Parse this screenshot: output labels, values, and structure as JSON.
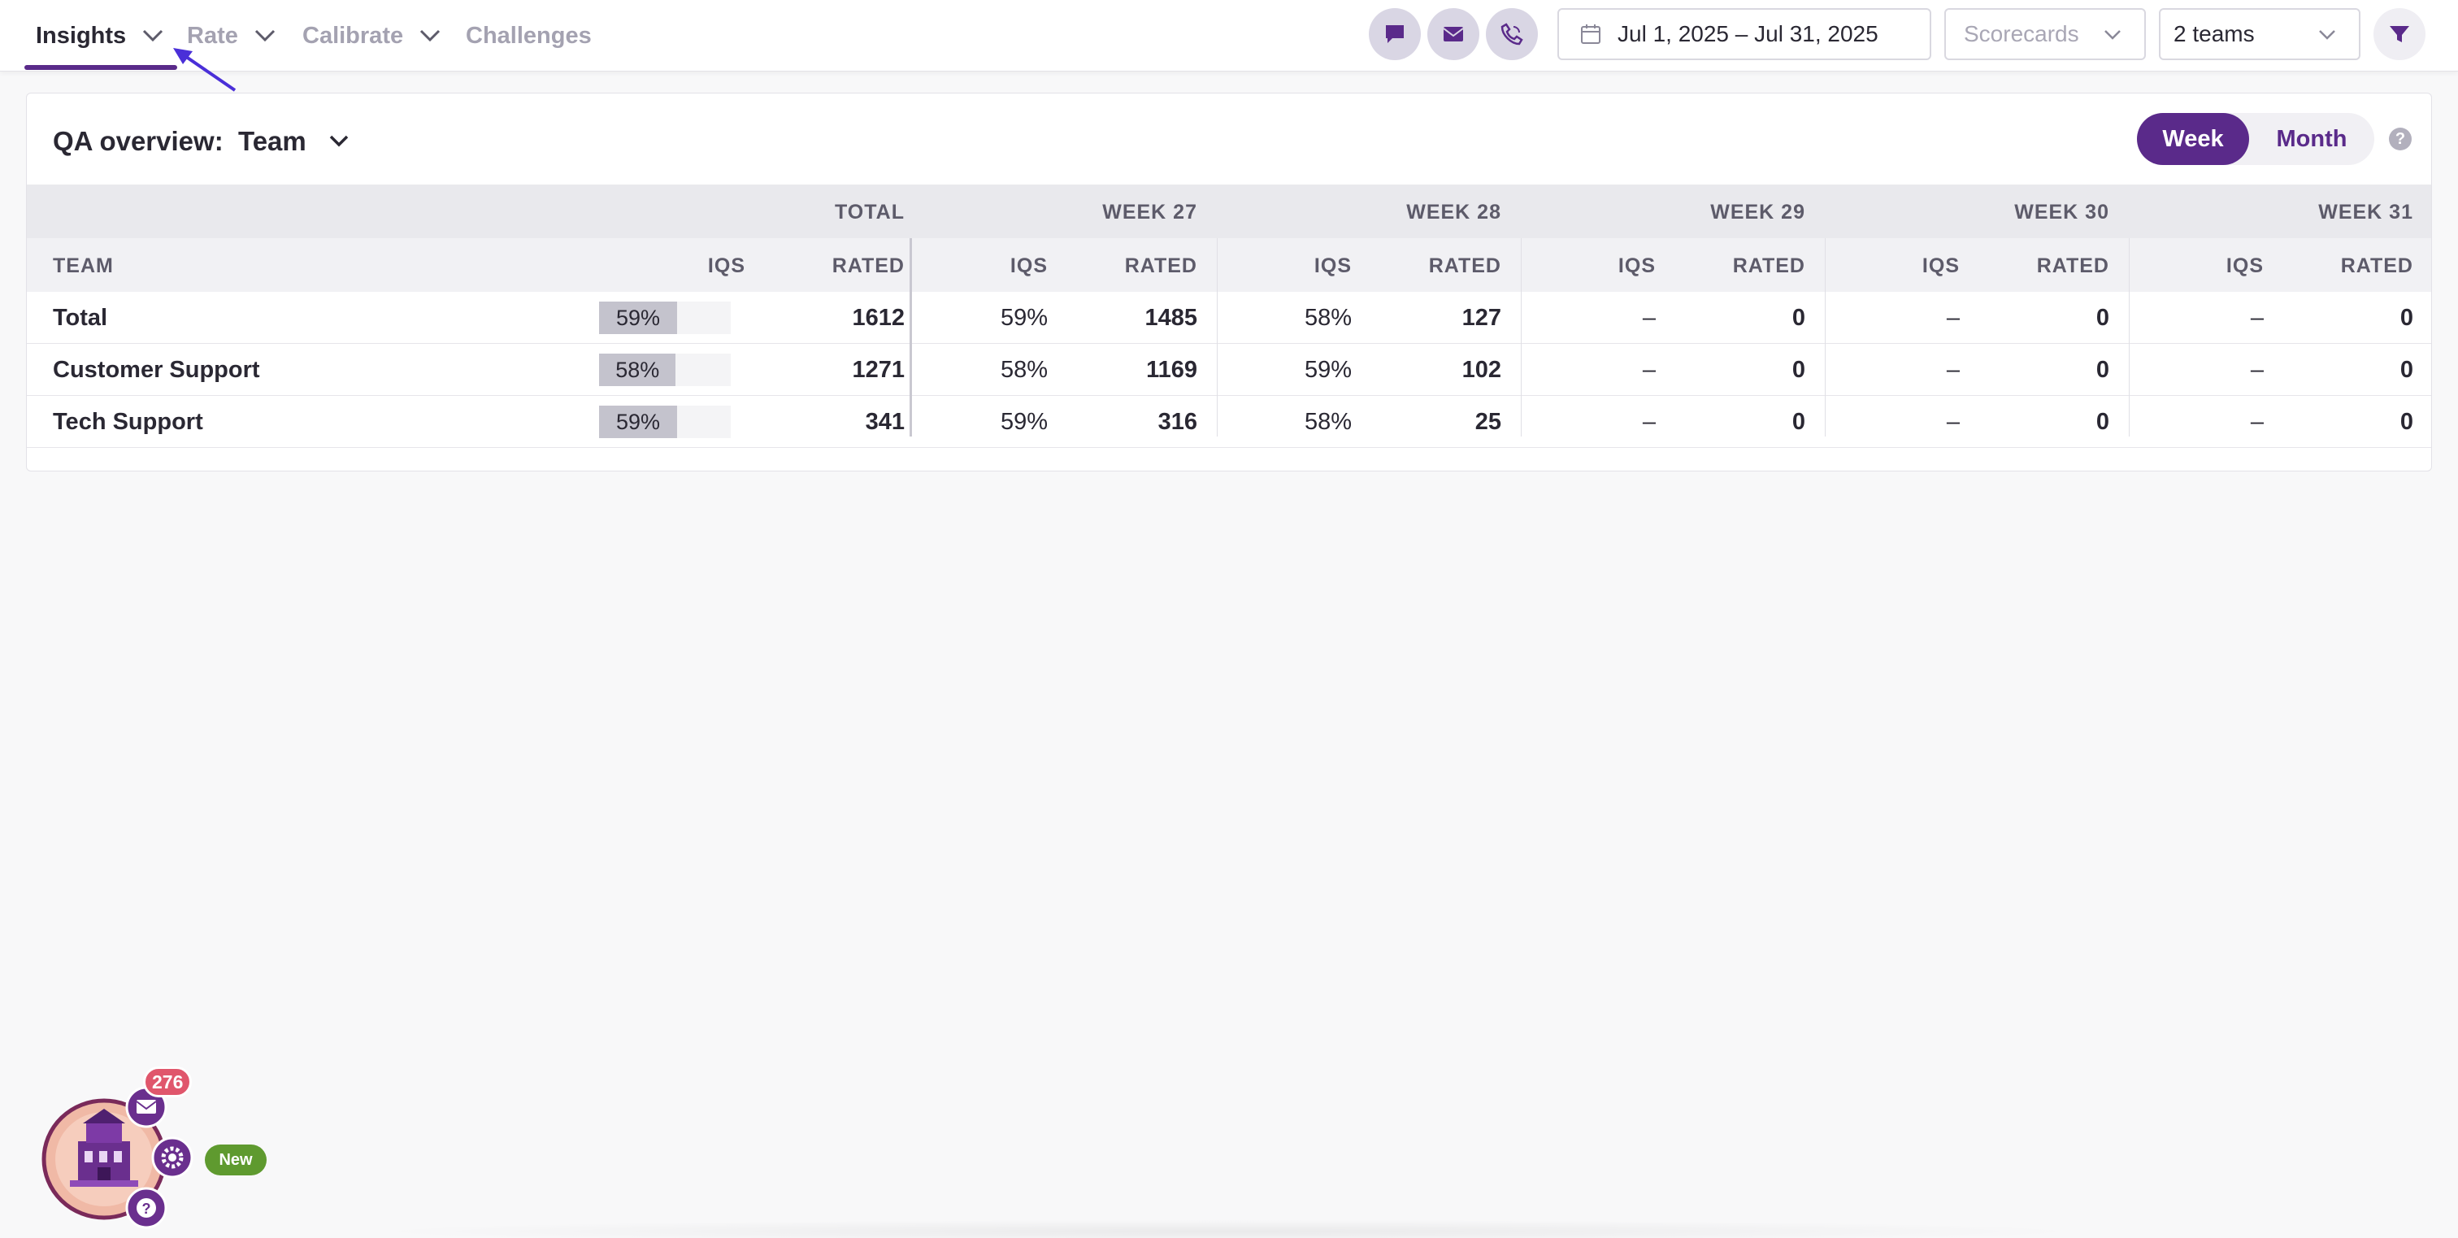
{
  "nav": {
    "items": [
      {
        "label": "Insights",
        "has_dropdown": true,
        "active": true
      },
      {
        "label": "Rate",
        "has_dropdown": true,
        "active": false
      },
      {
        "label": "Calibrate",
        "has_dropdown": true,
        "active": false
      },
      {
        "label": "Challenges",
        "has_dropdown": false,
        "active": false
      }
    ]
  },
  "toolbar": {
    "channel_icons": [
      "chat-icon",
      "email-icon",
      "phone-icon"
    ],
    "date_range": "Jul 1, 2025 – Jul 31, 2025",
    "scorecards_placeholder": "Scorecards",
    "teams_value": "2 teams",
    "filter_icon": "filter-icon"
  },
  "overview": {
    "label": "QA overview:",
    "value": "Team",
    "period_toggle": {
      "week": "Week",
      "month": "Month",
      "selected": "Week"
    },
    "help": "?"
  },
  "table": {
    "group_headers": [
      "TOTAL",
      "WEEK 27",
      "WEEK 28",
      "WEEK 29",
      "WEEK 30",
      "WEEK 31"
    ],
    "col_headers": {
      "team": "TEAM",
      "iqs": "IQS",
      "rated": "RATED"
    },
    "rows": [
      {
        "name": "Total",
        "total_iqs": "59%",
        "total_iqs_value": 59,
        "total_rated": "1612",
        "weeks": [
          {
            "iqs": "59%",
            "rated": "1485"
          },
          {
            "iqs": "58%",
            "rated": "127"
          },
          {
            "iqs": "–",
            "rated": "0"
          },
          {
            "iqs": "–",
            "rated": "0"
          },
          {
            "iqs": "–",
            "rated": "0"
          }
        ]
      },
      {
        "name": "Customer Support",
        "total_iqs": "58%",
        "total_iqs_value": 58,
        "total_rated": "1271",
        "weeks": [
          {
            "iqs": "58%",
            "rated": "1169"
          },
          {
            "iqs": "59%",
            "rated": "102"
          },
          {
            "iqs": "–",
            "rated": "0"
          },
          {
            "iqs": "–",
            "rated": "0"
          },
          {
            "iqs": "–",
            "rated": "0"
          }
        ]
      },
      {
        "name": "Tech Support",
        "total_iqs": "59%",
        "total_iqs_value": 59,
        "total_rated": "341",
        "weeks": [
          {
            "iqs": "59%",
            "rated": "316"
          },
          {
            "iqs": "58%",
            "rated": "25"
          },
          {
            "iqs": "–",
            "rated": "0"
          },
          {
            "iqs": "–",
            "rated": "0"
          },
          {
            "iqs": "–",
            "rated": "0"
          }
        ]
      }
    ]
  },
  "widget": {
    "badge_count": "276",
    "new_label": "New"
  },
  "colors": {
    "accent": "#5a2a8a",
    "badge": "#e0566c",
    "new": "#5f9a2f"
  }
}
